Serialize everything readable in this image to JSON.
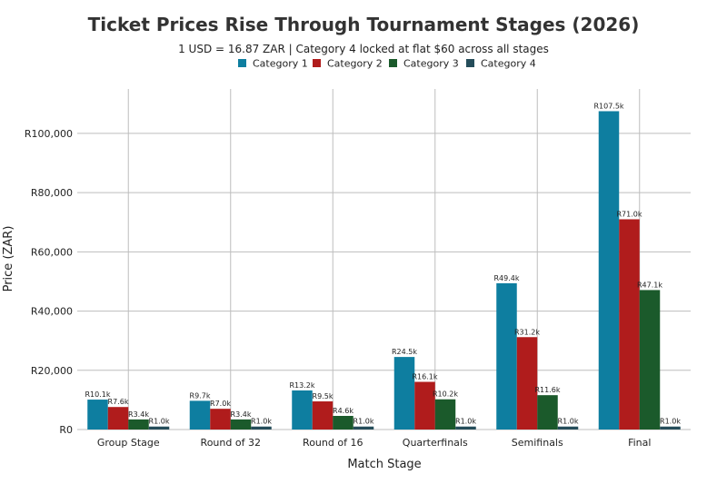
{
  "chart_data": {
    "type": "bar",
    "title": "Ticket Prices Rise Through Tournament Stages (2026)",
    "subtitle": "1 USD = 16.87 ZAR | Category 4 locked at flat $60 across all stages",
    "xlabel": "Match Stage",
    "ylabel": "Price (ZAR)",
    "ylim": [
      0,
      115000
    ],
    "yticks": [
      0,
      20000,
      40000,
      60000,
      80000,
      100000
    ],
    "ytick_labels": [
      "R0",
      "R20,000",
      "R40,000",
      "R60,000",
      "R80,000",
      "R100,000"
    ],
    "grid": true,
    "legend_position": "top-center",
    "categories": [
      "Group Stage",
      "Round of 32",
      "Round of 16",
      "Quarterfinals",
      "Semifinals",
      "Final"
    ],
    "series": [
      {
        "name": "Category 1",
        "color": "#0e7ea0",
        "values": [
          10100,
          9700,
          13200,
          24500,
          49400,
          107500
        ],
        "labels": [
          "R10.1k",
          "R9.7k",
          "R13.2k",
          "R24.5k",
          "R49.4k",
          "R107.5k"
        ]
      },
      {
        "name": "Category 2",
        "color": "#b01c1c",
        "values": [
          7600,
          7000,
          9500,
          16100,
          31200,
          71000
        ],
        "labels": [
          "R7.6k",
          "R7.0k",
          "R9.5k",
          "R16.1k",
          "R31.2k",
          "R71.0k"
        ]
      },
      {
        "name": "Category 3",
        "color": "#1b5a2b",
        "values": [
          3400,
          3400,
          4600,
          10200,
          11600,
          47100
        ],
        "labels": [
          "R3.4k",
          "R3.4k",
          "R4.6k",
          "R10.2k",
          "R11.6k",
          "R47.1k"
        ]
      },
      {
        "name": "Category 4",
        "color": "#254d5a",
        "values": [
          1000,
          1000,
          1000,
          1000,
          1000,
          1000
        ],
        "labels": [
          "R1.0k",
          "R1.0k",
          "R1.0k",
          "R1.0k",
          "R1.0k",
          "R1.0k"
        ]
      }
    ]
  }
}
